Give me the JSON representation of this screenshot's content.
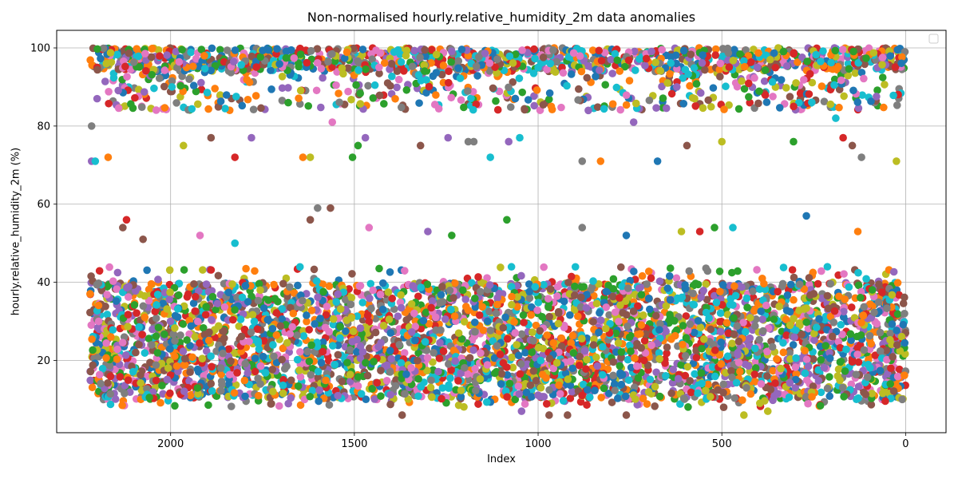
{
  "chart_data": {
    "type": "scatter",
    "title": "Non-normalised hourly.relative_humidity_2m data anomalies",
    "xlabel": "Index",
    "ylabel": "hourly.relative_humidity_2m (%)",
    "xlim": [
      2310,
      -110
    ],
    "ylim": [
      1.5,
      104.5
    ],
    "x_inverted": true,
    "grid": true,
    "legend": "top-right",
    "legend_entries": [],
    "xticks": [
      2000,
      1500,
      1000,
      500,
      0
    ],
    "yticks": [
      20,
      40,
      60,
      80,
      100
    ],
    "x_range": [
      0,
      2220
    ],
    "colors": [
      "#1f77b4",
      "#ff7f0e",
      "#2ca02c",
      "#d62728",
      "#9467bd",
      "#8c564b",
      "#e377c2",
      "#7f7f7f",
      "#bcbd22",
      "#17becf"
    ],
    "bands": [
      {
        "name": "high",
        "y_min": 84,
        "y_max": 100,
        "density": "dense"
      },
      {
        "name": "low",
        "y_min": 8,
        "y_max": 44,
        "density": "dense"
      }
    ],
    "outliers": [
      {
        "x": 2215,
        "y": 71
      },
      {
        "x": 2205,
        "y": 71
      },
      {
        "x": 2215,
        "y": 80
      },
      {
        "x": 2200,
        "y": 87
      },
      {
        "x": 2170,
        "y": 72
      },
      {
        "x": 1965,
        "y": 75
      },
      {
        "x": 1890,
        "y": 77
      },
      {
        "x": 1825,
        "y": 72
      },
      {
        "x": 1780,
        "y": 77
      },
      {
        "x": 1640,
        "y": 72
      },
      {
        "x": 1620,
        "y": 72
      },
      {
        "x": 1560,
        "y": 81
      },
      {
        "x": 1505,
        "y": 72
      },
      {
        "x": 1490,
        "y": 75
      },
      {
        "x": 1470,
        "y": 77
      },
      {
        "x": 1320,
        "y": 75
      },
      {
        "x": 1245,
        "y": 77
      },
      {
        "x": 1190,
        "y": 76
      },
      {
        "x": 1175,
        "y": 76
      },
      {
        "x": 1130,
        "y": 72
      },
      {
        "x": 1080,
        "y": 76
      },
      {
        "x": 1050,
        "y": 77
      },
      {
        "x": 880,
        "y": 71
      },
      {
        "x": 830,
        "y": 71
      },
      {
        "x": 740,
        "y": 81
      },
      {
        "x": 675,
        "y": 71
      },
      {
        "x": 595,
        "y": 75
      },
      {
        "x": 500,
        "y": 76
      },
      {
        "x": 305,
        "y": 76
      },
      {
        "x": 190,
        "y": 82
      },
      {
        "x": 170,
        "y": 77
      },
      {
        "x": 145,
        "y": 75
      },
      {
        "x": 120,
        "y": 72
      },
      {
        "x": 25,
        "y": 71
      },
      {
        "x": 2130,
        "y": 54
      },
      {
        "x": 2120,
        "y": 56
      },
      {
        "x": 2075,
        "y": 51
      },
      {
        "x": 1920,
        "y": 52
      },
      {
        "x": 1825,
        "y": 50
      },
      {
        "x": 1620,
        "y": 56
      },
      {
        "x": 1600,
        "y": 59
      },
      {
        "x": 1565,
        "y": 59
      },
      {
        "x": 1460,
        "y": 54
      },
      {
        "x": 1300,
        "y": 53
      },
      {
        "x": 1235,
        "y": 52
      },
      {
        "x": 1085,
        "y": 56
      },
      {
        "x": 880,
        "y": 54
      },
      {
        "x": 760,
        "y": 52
      },
      {
        "x": 610,
        "y": 53
      },
      {
        "x": 560,
        "y": 53
      },
      {
        "x": 520,
        "y": 54
      },
      {
        "x": 470,
        "y": 54
      },
      {
        "x": 270,
        "y": 57
      },
      {
        "x": 130,
        "y": 53
      },
      {
        "x": 1370,
        "y": 6
      },
      {
        "x": 1045,
        "y": 7
      },
      {
        "x": 970,
        "y": 6
      },
      {
        "x": 920,
        "y": 6
      },
      {
        "x": 760,
        "y": 6
      },
      {
        "x": 495,
        "y": 8
      },
      {
        "x": 440,
        "y": 6
      },
      {
        "x": 375,
        "y": 7
      }
    ]
  }
}
